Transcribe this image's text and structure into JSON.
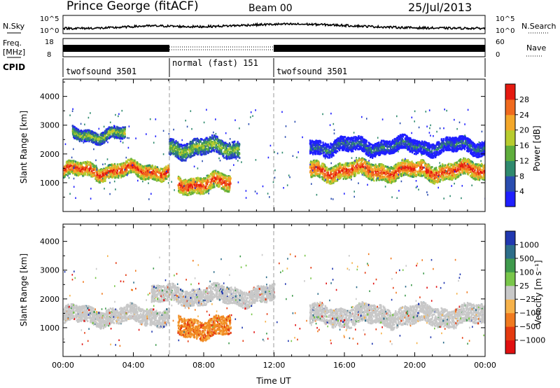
{
  "header": {
    "station": "Prince George (fitACF)",
    "beam": "Beam 00",
    "date": "25/Jul/2013"
  },
  "status_panels": {
    "nsky": {
      "label": "N.Sky",
      "ticks": [
        "10^5",
        "10^0"
      ]
    },
    "nsearch": {
      "label": "N.Search",
      "ticks": [
        "10^5",
        "10^0"
      ]
    },
    "freq": {
      "label_top": "Freq.",
      "label_bottom": "[MHz]",
      "ticks": [
        "18",
        "8"
      ]
    },
    "nave": {
      "label": "Nave",
      "ticks": [
        "60",
        "0"
      ]
    },
    "cpid": {
      "label": "CPID",
      "segments": [
        {
          "name": "twofsound 3501",
          "start": 0,
          "end": 6
        },
        {
          "name": "normal (fast) 151",
          "start": 6,
          "end": 12
        },
        {
          "name": "twofsound 3501",
          "start": 12,
          "end": 24
        }
      ]
    }
  },
  "chart_data": [
    {
      "type": "heatmap",
      "quantity": "Power",
      "ylabel": "Slant Range [km]",
      "ylim": [
        0,
        4600
      ],
      "yticks": [
        "1000",
        "2000",
        "3000",
        "4000"
      ],
      "xlim": [
        0,
        24
      ],
      "colorbar": {
        "label": "Power [dB]",
        "ticks": [
          "4",
          "8",
          "12",
          "16",
          "20",
          "24",
          "28"
        ],
        "colors": [
          "#1f1fff",
          "#2a4db0",
          "#2f8a6e",
          "#5fae3c",
          "#b8cc2e",
          "#f3a72a",
          "#f06a1e",
          "#e51a10"
        ]
      },
      "echo_regions": [
        {
          "t0": 0.0,
          "t1": 6.0,
          "range_center": 1450,
          "range_width": 300,
          "power": "high"
        },
        {
          "t0": 0.5,
          "t1": 3.5,
          "range_center": 2700,
          "range_width": 250,
          "power": "medium"
        },
        {
          "t0": 6.5,
          "t1": 9.5,
          "range_center": 1000,
          "range_width": 350,
          "power": "high"
        },
        {
          "t0": 6.0,
          "t1": 10.0,
          "range_center": 2250,
          "range_width": 350,
          "power": "medium"
        },
        {
          "t0": 14.0,
          "t1": 24.0,
          "range_center": 1450,
          "range_width": 350,
          "power": "high"
        },
        {
          "t0": 14.0,
          "t1": 24.0,
          "range_center": 2300,
          "range_width": 300,
          "power": "low"
        }
      ]
    },
    {
      "type": "heatmap",
      "quantity": "Velocity",
      "ylabel": "Slant Range [km]",
      "xlabel": "Time UT",
      "ylim": [
        0,
        4600
      ],
      "yticks": [
        "1000",
        "2000",
        "3000",
        "4000"
      ],
      "xlim": [
        0,
        24
      ],
      "xticks": [
        "00:00",
        "04:00",
        "08:00",
        "12:00",
        "16:00",
        "20:00",
        "00:00"
      ],
      "colorbar": {
        "label": "Velocity [m s⁻¹]",
        "ticks": [
          "1000",
          "500",
          "100",
          "25",
          "−25",
          "−100",
          "−500",
          "−1000"
        ],
        "colors": [
          "#2138b0",
          "#2d6e8a",
          "#3f9a4c",
          "#79c64a",
          "#c8c8c8",
          "#f6b24a",
          "#f07a1f",
          "#e43a10",
          "#e11010"
        ]
      },
      "echo_regions": [
        {
          "t0": 0.0,
          "t1": 6.0,
          "range_center": 1450,
          "range_width": 350,
          "velocity": "~0 (grey)"
        },
        {
          "t0": 6.5,
          "t1": 9.5,
          "range_center": 1050,
          "range_width": 400,
          "velocity": "-100 to -500"
        },
        {
          "t0": 5.0,
          "t1": 12.0,
          "range_center": 2150,
          "range_width": 350,
          "velocity": "~0 (grey)"
        },
        {
          "t0": 14.0,
          "t1": 24.0,
          "range_center": 1450,
          "range_width": 400,
          "velocity": "~0 (grey)"
        }
      ]
    }
  ]
}
